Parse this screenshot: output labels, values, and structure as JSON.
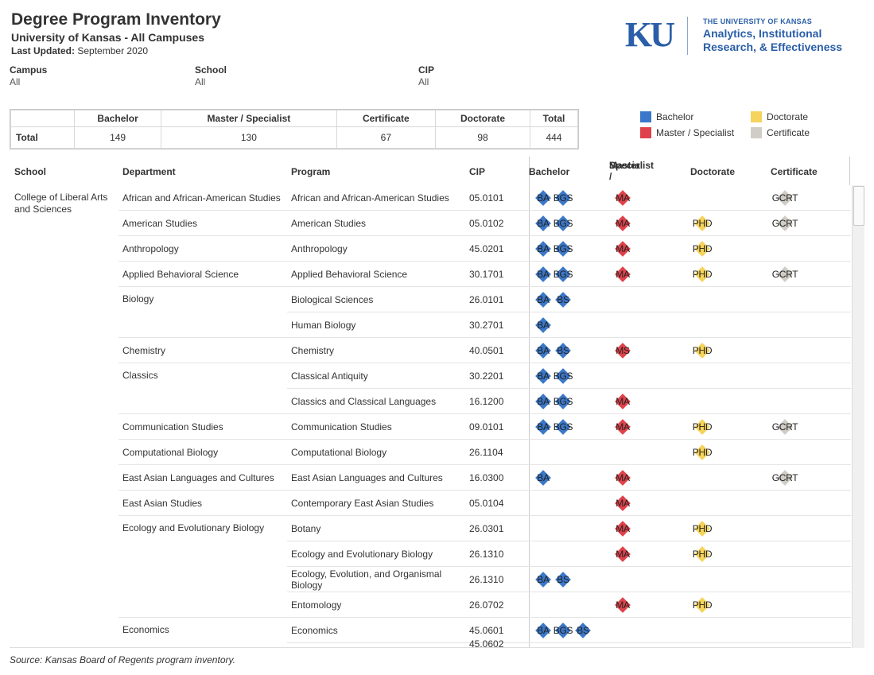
{
  "header": {
    "title": "Degree Program Inventory",
    "subtitle": "University of Kansas - All Campuses",
    "updated_label": "Last Updated:",
    "updated_value": "September 2020"
  },
  "logo": {
    "mark": "KU",
    "small": "THE UNIVERSITY OF KANSAS",
    "line1": "Analytics, Institutional",
    "line2": "Research, & Effectiveness"
  },
  "filters": [
    {
      "label": "Campus",
      "value": "All"
    },
    {
      "label": "School",
      "value": "All"
    },
    {
      "label": "CIP",
      "value": "All"
    }
  ],
  "summary": {
    "headers": [
      "Bachelor",
      "Master / Specialist",
      "Certificate",
      "Doctorate",
      "Total"
    ],
    "row_label": "Total",
    "values": [
      "149",
      "130",
      "67",
      "98",
      "444"
    ]
  },
  "legend": [
    {
      "label": "Bachelor",
      "color": "#3b78c9"
    },
    {
      "label": "Doctorate",
      "color": "#f5d35c"
    },
    {
      "label": "Master / Specialist",
      "color": "#e0424b"
    },
    {
      "label": "Certificate",
      "color": "#cfcdc5"
    }
  ],
  "colors": {
    "bachelor": "#3b78c9",
    "master": "#e0424b",
    "doctorate": "#f5d35c",
    "certificate": "#cfcdc5"
  },
  "columns": {
    "school": "School",
    "department": "Department",
    "program": "Program",
    "cip": "CIP",
    "bachelor": "Bachelor",
    "master_line1": "Master /",
    "master_line2": "Specialist",
    "doctorate": "Doctorate",
    "certificate": "Certificate"
  },
  "school_name": "College of Liberal Arts and Sciences",
  "rows": [
    {
      "dept": "African and African-American Studies",
      "prog": "African and African-American Studies",
      "cip": "05.0101",
      "bach": [
        "BA",
        "BGS"
      ],
      "mast": [
        "MA"
      ],
      "doc": [],
      "cert": [
        "GCRT"
      ]
    },
    {
      "dept": "American Studies",
      "prog": "American Studies",
      "cip": "05.0102",
      "bach": [
        "BA",
        "BGS"
      ],
      "mast": [
        "MA"
      ],
      "doc": [
        "PHD"
      ],
      "cert": [
        "GCRT"
      ]
    },
    {
      "dept": "Anthropology",
      "prog": "Anthropology",
      "cip": "45.0201",
      "bach": [
        "BA",
        "BGS"
      ],
      "mast": [
        "MA"
      ],
      "doc": [
        "PHD"
      ],
      "cert": []
    },
    {
      "dept": "Applied Behavioral Science",
      "prog": "Applied Behavioral Science",
      "cip": "30.1701",
      "bach": [
        "BA",
        "BGS"
      ],
      "mast": [
        "MA"
      ],
      "doc": [
        "PHD"
      ],
      "cert": [
        "GCRT"
      ]
    },
    {
      "dept": "Biology",
      "prog": "Biological Sciences",
      "cip": "26.0101",
      "bach": [
        "BA",
        "BS"
      ],
      "mast": [],
      "doc": [],
      "cert": []
    },
    {
      "dept": "",
      "prog": "Human Biology",
      "cip": "30.2701",
      "bach": [
        "BA"
      ],
      "mast": [],
      "doc": [],
      "cert": []
    },
    {
      "dept": "Chemistry",
      "prog": "Chemistry",
      "cip": "40.0501",
      "bach": [
        "BA",
        "BS"
      ],
      "mast": [
        "MS"
      ],
      "doc": [
        "PHD"
      ],
      "cert": []
    },
    {
      "dept": "Classics",
      "prog": "Classical Antiquity",
      "cip": "30.2201",
      "bach": [
        "BA",
        "BGS"
      ],
      "mast": [],
      "doc": [],
      "cert": []
    },
    {
      "dept": "",
      "prog": "Classics and Classical Languages",
      "cip": "16.1200",
      "bach": [
        "BA",
        "BGS"
      ],
      "mast": [
        "MA"
      ],
      "doc": [],
      "cert": []
    },
    {
      "dept": "Communication Studies",
      "prog": "Communication Studies",
      "cip": "09.0101",
      "bach": [
        "BA",
        "BGS"
      ],
      "mast": [
        "MA"
      ],
      "doc": [
        "PHD"
      ],
      "cert": [
        "GCRT"
      ]
    },
    {
      "dept": "Computational Biology",
      "prog": "Computational Biology",
      "cip": "26.1104",
      "bach": [],
      "mast": [],
      "doc": [
        "PHD"
      ],
      "cert": []
    },
    {
      "dept": "East Asian Languages and Cultures",
      "prog": "East Asian Languages and Cultures",
      "cip": "16.0300",
      "bach": [
        "BA"
      ],
      "mast": [
        "MA"
      ],
      "doc": [],
      "cert": [
        "GCRT"
      ]
    },
    {
      "dept": "East Asian Studies",
      "prog": "Contemporary East Asian Studies",
      "cip": "05.0104",
      "bach": [],
      "mast": [
        "MA"
      ],
      "doc": [],
      "cert": []
    },
    {
      "dept": "Ecology and Evolutionary Biology",
      "prog": "Botany",
      "cip": "26.0301",
      "bach": [],
      "mast": [
        "MA"
      ],
      "doc": [
        "PHD"
      ],
      "cert": []
    },
    {
      "dept": "",
      "prog": "Ecology and Evolutionary Biology",
      "cip": "26.1310",
      "bach": [],
      "mast": [
        "MA"
      ],
      "doc": [
        "PHD"
      ],
      "cert": []
    },
    {
      "dept": "",
      "prog": "Ecology, Evolution, and Organismal Biology",
      "cip": "26.1310",
      "bach": [
        "BA",
        "BS"
      ],
      "mast": [],
      "doc": [],
      "cert": []
    },
    {
      "dept": "",
      "prog": "Entomology",
      "cip": "26.0702",
      "bach": [],
      "mast": [
        "MA"
      ],
      "doc": [
        "PHD"
      ],
      "cert": []
    },
    {
      "dept": "Economics",
      "prog": "Economics",
      "cip": "45.0601",
      "bach": [
        "BA",
        "BGS",
        "BS"
      ],
      "mast": [],
      "doc": [],
      "cert": []
    },
    {
      "dept": "",
      "prog": "",
      "cip": "45.0602",
      "bach": [],
      "mast": [],
      "doc": [],
      "cert": []
    }
  ],
  "source": "Source:  Kansas Board of Regents program inventory."
}
